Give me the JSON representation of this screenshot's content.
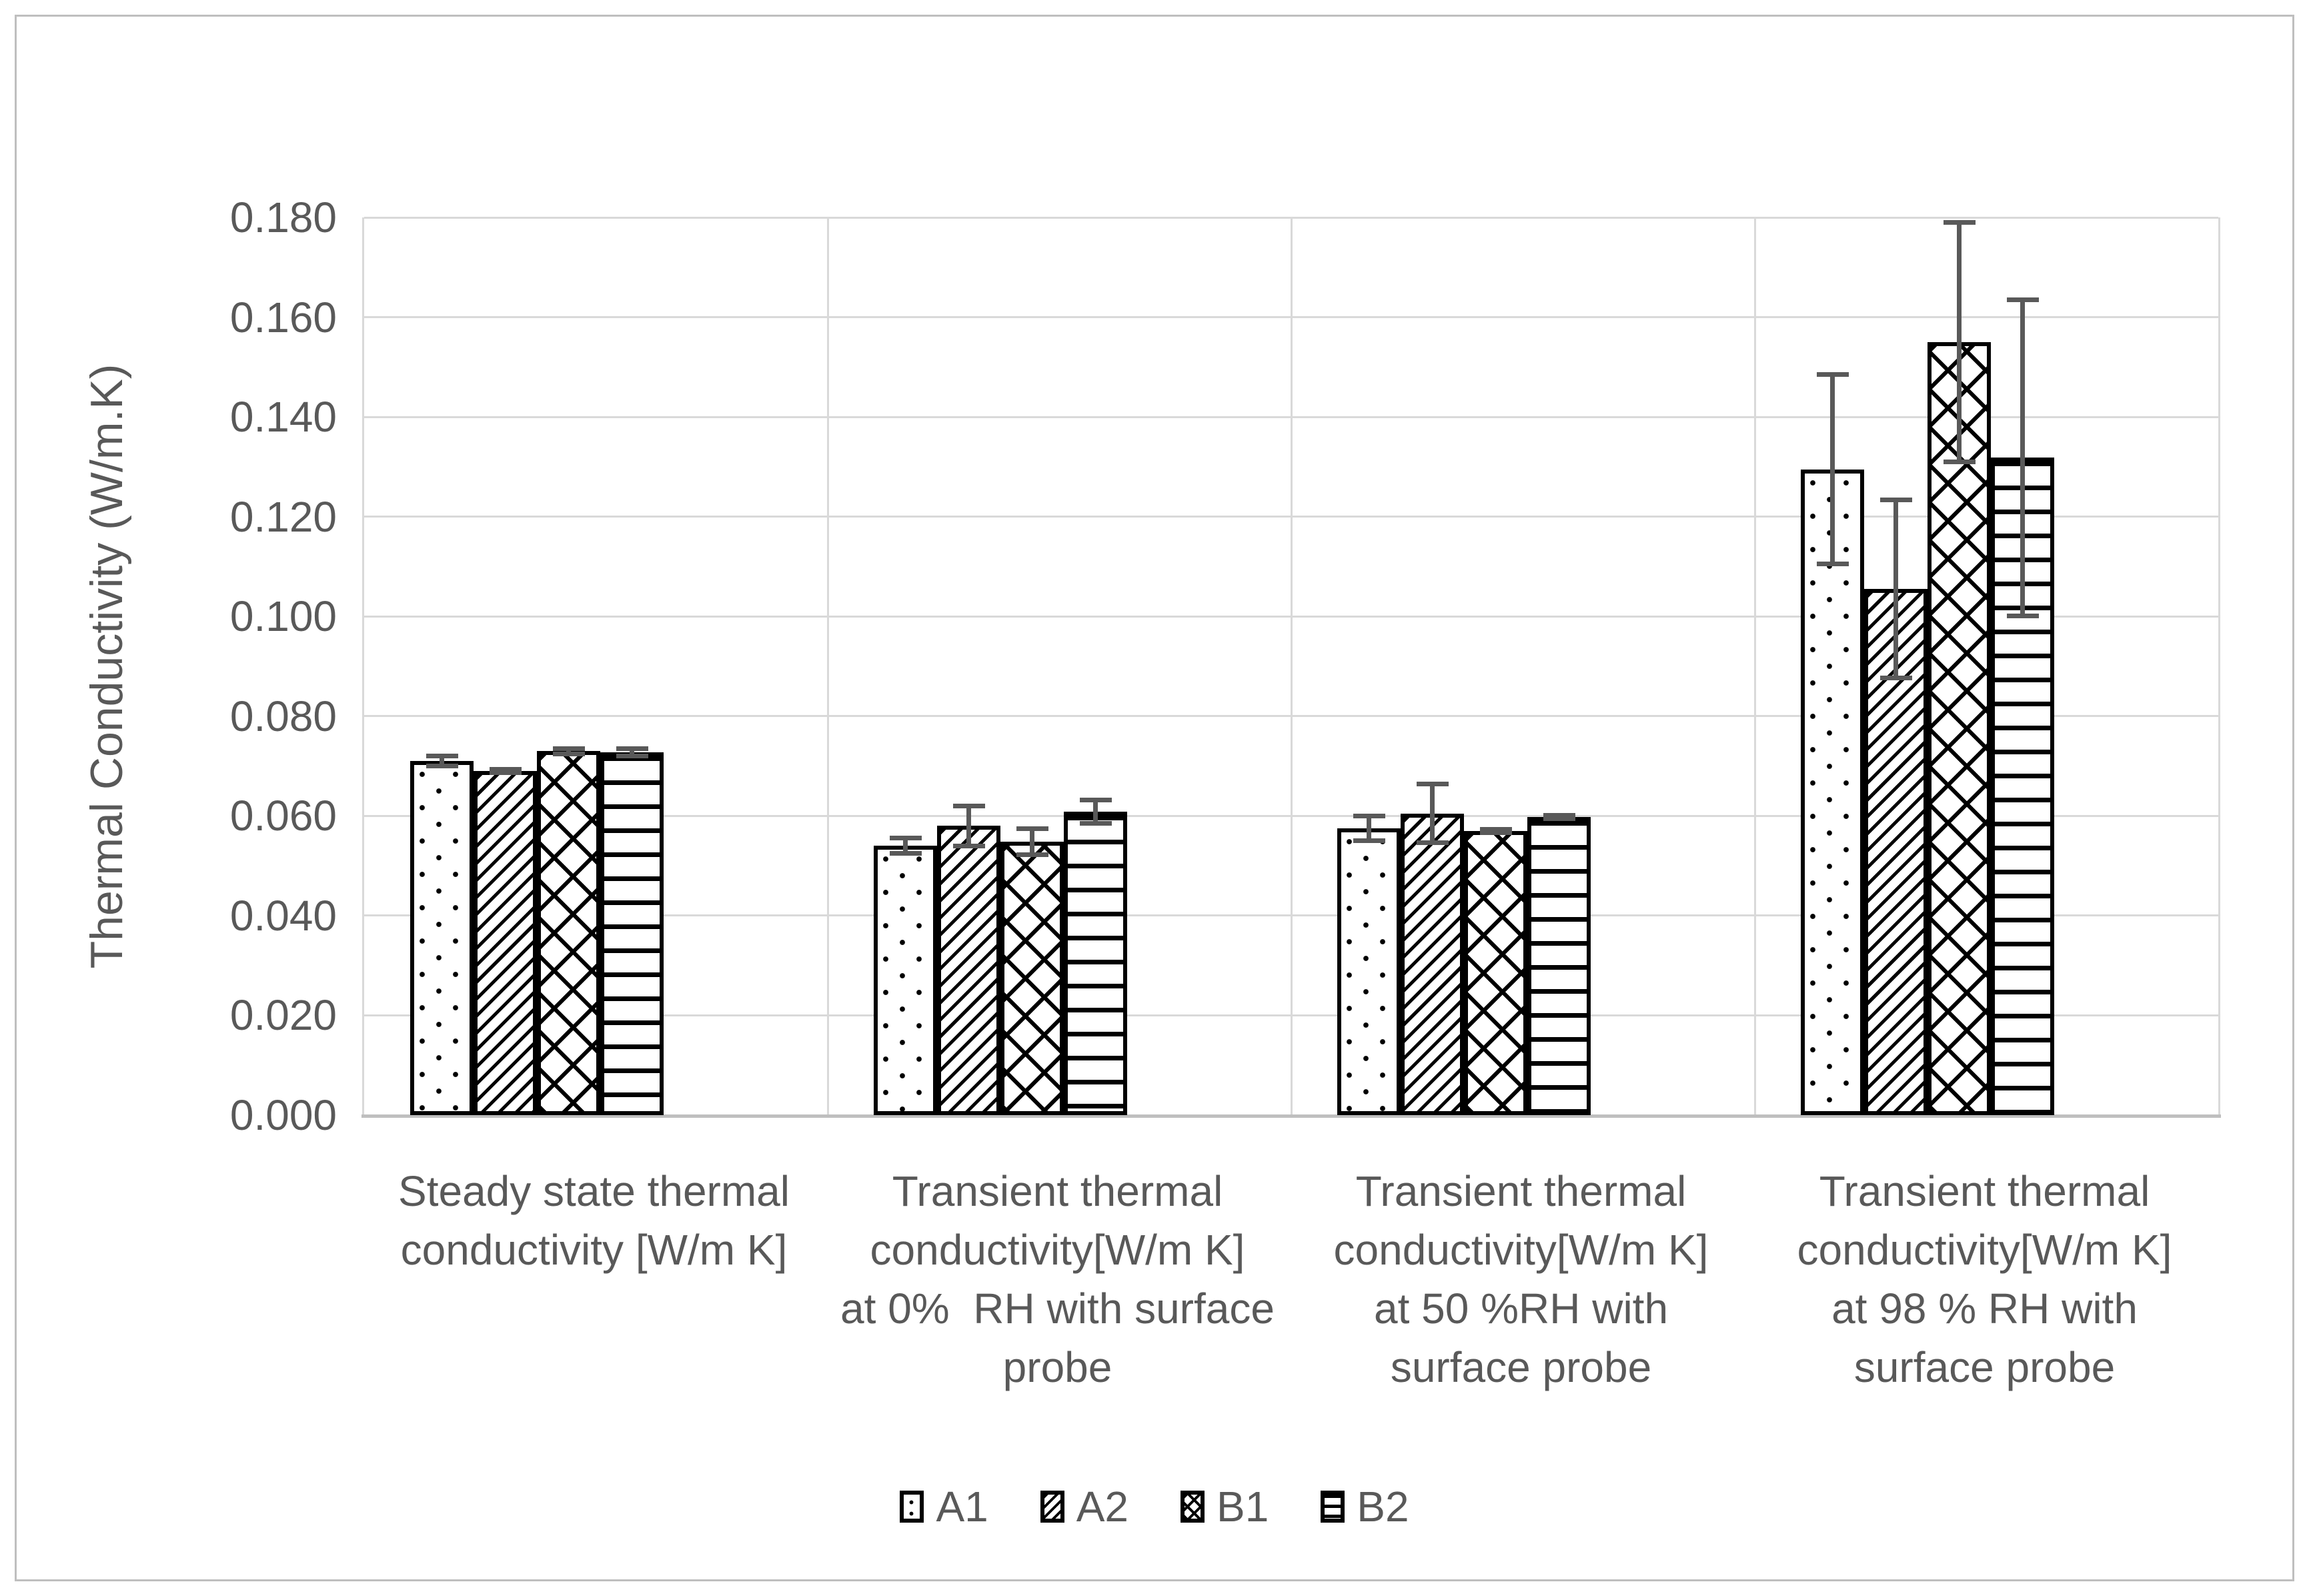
{
  "chart_data": {
    "type": "bar",
    "title": "",
    "xlabel": "",
    "ylabel": "Thermal Conductivity (W/m.K)",
    "ylim": [
      0,
      0.18
    ],
    "ytick_step": 0.02,
    "y_tick_labels": [
      "0.000",
      "0.020",
      "0.040",
      "0.060",
      "0.080",
      "0.100",
      "0.120",
      "0.140",
      "0.160",
      "0.180"
    ],
    "grid": true,
    "legend_position": "bottom",
    "categories": [
      "Steady state thermal conductivity [W/m K]",
      "Transient thermal conductivity[W/m K] at 0%  RH with surface probe",
      "Transient thermal conductivity[W/m K] at 50 %RH with surface probe",
      "Transient thermal conductivity[W/m K] at 98 % RH with surface probe"
    ],
    "category_lines": [
      [
        "Steady state thermal",
        "conductivity [W/m K]"
      ],
      [
        "Transient thermal",
        "conductivity[W/m K]",
        "at 0%  RH with surface",
        "probe"
      ],
      [
        "Transient thermal",
        "conductivity[W/m K]",
        "at 50 %RH with",
        "surface probe"
      ],
      [
        "Transient thermal",
        "conductivity[W/m K]",
        "at 98 % RH with",
        "surface probe"
      ]
    ],
    "series": [
      {
        "name": "A1",
        "pattern": "dots",
        "values": [
          0.071,
          0.054,
          0.0575,
          0.1295
        ],
        "errors": [
          0.0015,
          0.002,
          0.0029,
          0.0195
        ]
      },
      {
        "name": "A2",
        "pattern": "diag",
        "values": [
          0.069,
          0.058,
          0.0605,
          0.1055
        ],
        "errors": [
          0.0008,
          0.0045,
          0.0063,
          0.0183
        ]
      },
      {
        "name": "B1",
        "pattern": "cross",
        "values": [
          0.073,
          0.0548,
          0.057,
          0.155
        ],
        "errors": [
          0.001,
          0.0031,
          0.0008,
          0.0245
        ]
      },
      {
        "name": "B2",
        "pattern": "horiz",
        "values": [
          0.0727,
          0.0608,
          0.0598,
          0.1318
        ],
        "errors": [
          0.0012,
          0.0028,
          0.0008,
          0.0322
        ]
      }
    ],
    "colors": {
      "bar_fill": "#ffffff",
      "bar_pattern": "#000000",
      "bar_border": "#000000",
      "error_bar": "#595959",
      "gridline": "#d9d9d9",
      "axis_line": "#bfbfbf",
      "text": "#595959"
    }
  }
}
